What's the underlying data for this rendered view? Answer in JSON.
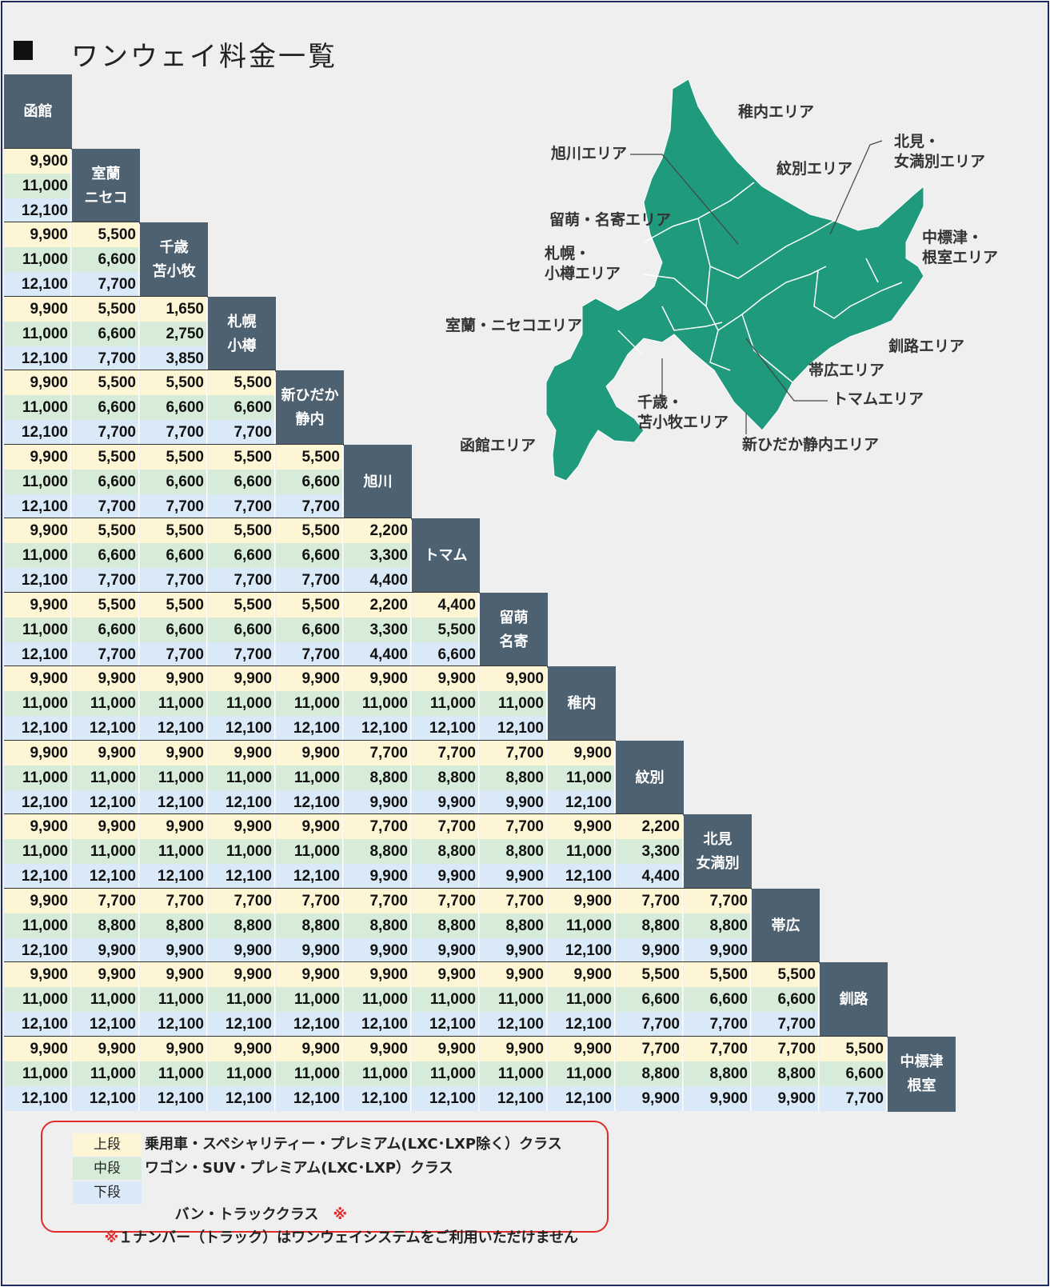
{
  "title": "ワンウェイ料金一覧",
  "colors": {
    "header_bg": "#4e6170",
    "tier_top": "#fef5d5",
    "tier_mid": "#d6ebd8",
    "tier_low": "#d9e9f7",
    "map": "#1f9a7c",
    "legend_border": "#e02b2b"
  },
  "headers": [
    "函館",
    "室蘭\nニセコ",
    "千歳\n苫小牧",
    "札幌\n小樽",
    "新ひだか\n静内",
    "旭川",
    "トマム",
    "留萌\n名寄",
    "稚内",
    "紋別",
    "北見\n女満別",
    "帯広",
    "釧路",
    "中標津\n根室"
  ],
  "rows": [
    [
      [
        "9,900",
        "11,000",
        "12,100"
      ]
    ],
    [
      [
        "9,900",
        "11,000",
        "12,100"
      ],
      [
        "5,500",
        "6,600",
        "7,700"
      ]
    ],
    [
      [
        "9,900",
        "11,000",
        "12,100"
      ],
      [
        "5,500",
        "6,600",
        "7,700"
      ],
      [
        "1,650",
        "2,750",
        "3,850"
      ]
    ],
    [
      [
        "9,900",
        "11,000",
        "12,100"
      ],
      [
        "5,500",
        "6,600",
        "7,700"
      ],
      [
        "5,500",
        "6,600",
        "7,700"
      ],
      [
        "5,500",
        "6,600",
        "7,700"
      ]
    ],
    [
      [
        "9,900",
        "11,000",
        "12,100"
      ],
      [
        "5,500",
        "6,600",
        "7,700"
      ],
      [
        "5,500",
        "6,600",
        "7,700"
      ],
      [
        "5,500",
        "6,600",
        "7,700"
      ],
      [
        "5,500",
        "6,600",
        "7,700"
      ]
    ],
    [
      [
        "9,900",
        "11,000",
        "12,100"
      ],
      [
        "5,500",
        "6,600",
        "7,700"
      ],
      [
        "5,500",
        "6,600",
        "7,700"
      ],
      [
        "5,500",
        "6,600",
        "7,700"
      ],
      [
        "5,500",
        "6,600",
        "7,700"
      ],
      [
        "2,200",
        "3,300",
        "4,400"
      ]
    ],
    [
      [
        "9,900",
        "11,000",
        "12,100"
      ],
      [
        "5,500",
        "6,600",
        "7,700"
      ],
      [
        "5,500",
        "6,600",
        "7,700"
      ],
      [
        "5,500",
        "6,600",
        "7,700"
      ],
      [
        "5,500",
        "6,600",
        "7,700"
      ],
      [
        "2,200",
        "3,300",
        "4,400"
      ],
      [
        "4,400",
        "5,500",
        "6,600"
      ]
    ],
    [
      [
        "9,900",
        "11,000",
        "12,100"
      ],
      [
        "9,900",
        "11,000",
        "12,100"
      ],
      [
        "9,900",
        "11,000",
        "12,100"
      ],
      [
        "9,900",
        "11,000",
        "12,100"
      ],
      [
        "9,900",
        "11,000",
        "12,100"
      ],
      [
        "9,900",
        "11,000",
        "12,100"
      ],
      [
        "9,900",
        "11,000",
        "12,100"
      ],
      [
        "9,900",
        "11,000",
        "12,100"
      ]
    ],
    [
      [
        "9,900",
        "11,000",
        "12,100"
      ],
      [
        "9,900",
        "11,000",
        "12,100"
      ],
      [
        "9,900",
        "11,000",
        "12,100"
      ],
      [
        "9,900",
        "11,000",
        "12,100"
      ],
      [
        "9,900",
        "11,000",
        "12,100"
      ],
      [
        "7,700",
        "8,800",
        "9,900"
      ],
      [
        "7,700",
        "8,800",
        "9,900"
      ],
      [
        "7,700",
        "8,800",
        "9,900"
      ],
      [
        "9,900",
        "11,000",
        "12,100"
      ]
    ],
    [
      [
        "9,900",
        "11,000",
        "12,100"
      ],
      [
        "9,900",
        "11,000",
        "12,100"
      ],
      [
        "9,900",
        "11,000",
        "12,100"
      ],
      [
        "9,900",
        "11,000",
        "12,100"
      ],
      [
        "9,900",
        "11,000",
        "12,100"
      ],
      [
        "7,700",
        "8,800",
        "9,900"
      ],
      [
        "7,700",
        "8,800",
        "9,900"
      ],
      [
        "7,700",
        "8,800",
        "9,900"
      ],
      [
        "9,900",
        "11,000",
        "12,100"
      ],
      [
        "2,200",
        "3,300",
        "4,400"
      ]
    ],
    [
      [
        "9,900",
        "11,000",
        "12,100"
      ],
      [
        "7,700",
        "8,800",
        "9,900"
      ],
      [
        "7,700",
        "8,800",
        "9,900"
      ],
      [
        "7,700",
        "8,800",
        "9,900"
      ],
      [
        "7,700",
        "8,800",
        "9,900"
      ],
      [
        "7,700",
        "8,800",
        "9,900"
      ],
      [
        "7,700",
        "8,800",
        "9,900"
      ],
      [
        "7,700",
        "8,800",
        "9,900"
      ],
      [
        "9,900",
        "11,000",
        "12,100"
      ],
      [
        "7,700",
        "8,800",
        "9,900"
      ],
      [
        "7,700",
        "8,800",
        "9,900"
      ]
    ],
    [
      [
        "9,900",
        "11,000",
        "12,100"
      ],
      [
        "9,900",
        "11,000",
        "12,100"
      ],
      [
        "9,900",
        "11,000",
        "12,100"
      ],
      [
        "9,900",
        "11,000",
        "12,100"
      ],
      [
        "9,900",
        "11,000",
        "12,100"
      ],
      [
        "9,900",
        "11,000",
        "12,100"
      ],
      [
        "9,900",
        "11,000",
        "12,100"
      ],
      [
        "9,900",
        "11,000",
        "12,100"
      ],
      [
        "9,900",
        "11,000",
        "12,100"
      ],
      [
        "5,500",
        "6,600",
        "7,700"
      ],
      [
        "5,500",
        "6,600",
        "7,700"
      ],
      [
        "5,500",
        "6,600",
        "7,700"
      ]
    ],
    [
      [
        "9,900",
        "11,000",
        "12,100"
      ],
      [
        "9,900",
        "11,000",
        "12,100"
      ],
      [
        "9,900",
        "11,000",
        "12,100"
      ],
      [
        "9,900",
        "11,000",
        "12,100"
      ],
      [
        "9,900",
        "11,000",
        "12,100"
      ],
      [
        "9,900",
        "11,000",
        "12,100"
      ],
      [
        "9,900",
        "11,000",
        "12,100"
      ],
      [
        "9,900",
        "11,000",
        "12,100"
      ],
      [
        "9,900",
        "11,000",
        "12,100"
      ],
      [
        "7,700",
        "8,800",
        "9,900"
      ],
      [
        "7,700",
        "8,800",
        "9,900"
      ],
      [
        "7,700",
        "8,800",
        "9,900"
      ],
      [
        "5,500",
        "6,600",
        "7,700"
      ]
    ]
  ],
  "map_labels": {
    "wakkanai": "稚内エリア",
    "asahikawa": "旭川エリア",
    "monbetsu": "紋別エリア",
    "kitami": "北見・\n女満別エリア",
    "rumoi": "留萌・名寄エリア",
    "sapporo": "札幌・\n小樽エリア",
    "nakashibetsu": "中標津・\n根室エリア",
    "muroran": "室蘭・ニセコエリア",
    "kushiro": "釧路エリア",
    "obihiro": "帯広エリア",
    "tomamu": "トマムエリア",
    "chitose": "千歳・\n苫小牧エリア",
    "hakodate": "函館エリア",
    "shizunai": "新ひだか静内エリア"
  },
  "legend": {
    "top_tag": "上段",
    "top_text": "乗用車・スペシャリティー・プレミアム(LXC･LXP除く）クラス",
    "mid_tag": "中段",
    "mid_text": "ワゴン・SUV・プレミアム(LXC･LXP）クラス",
    "low_tag": "下段",
    "low_text": "バン・トラッククラス",
    "low_mark": "※",
    "note_mark": "※",
    "note_text": "１ナンバー（トラック）はワンウェイシステムをご利用いただけません"
  }
}
